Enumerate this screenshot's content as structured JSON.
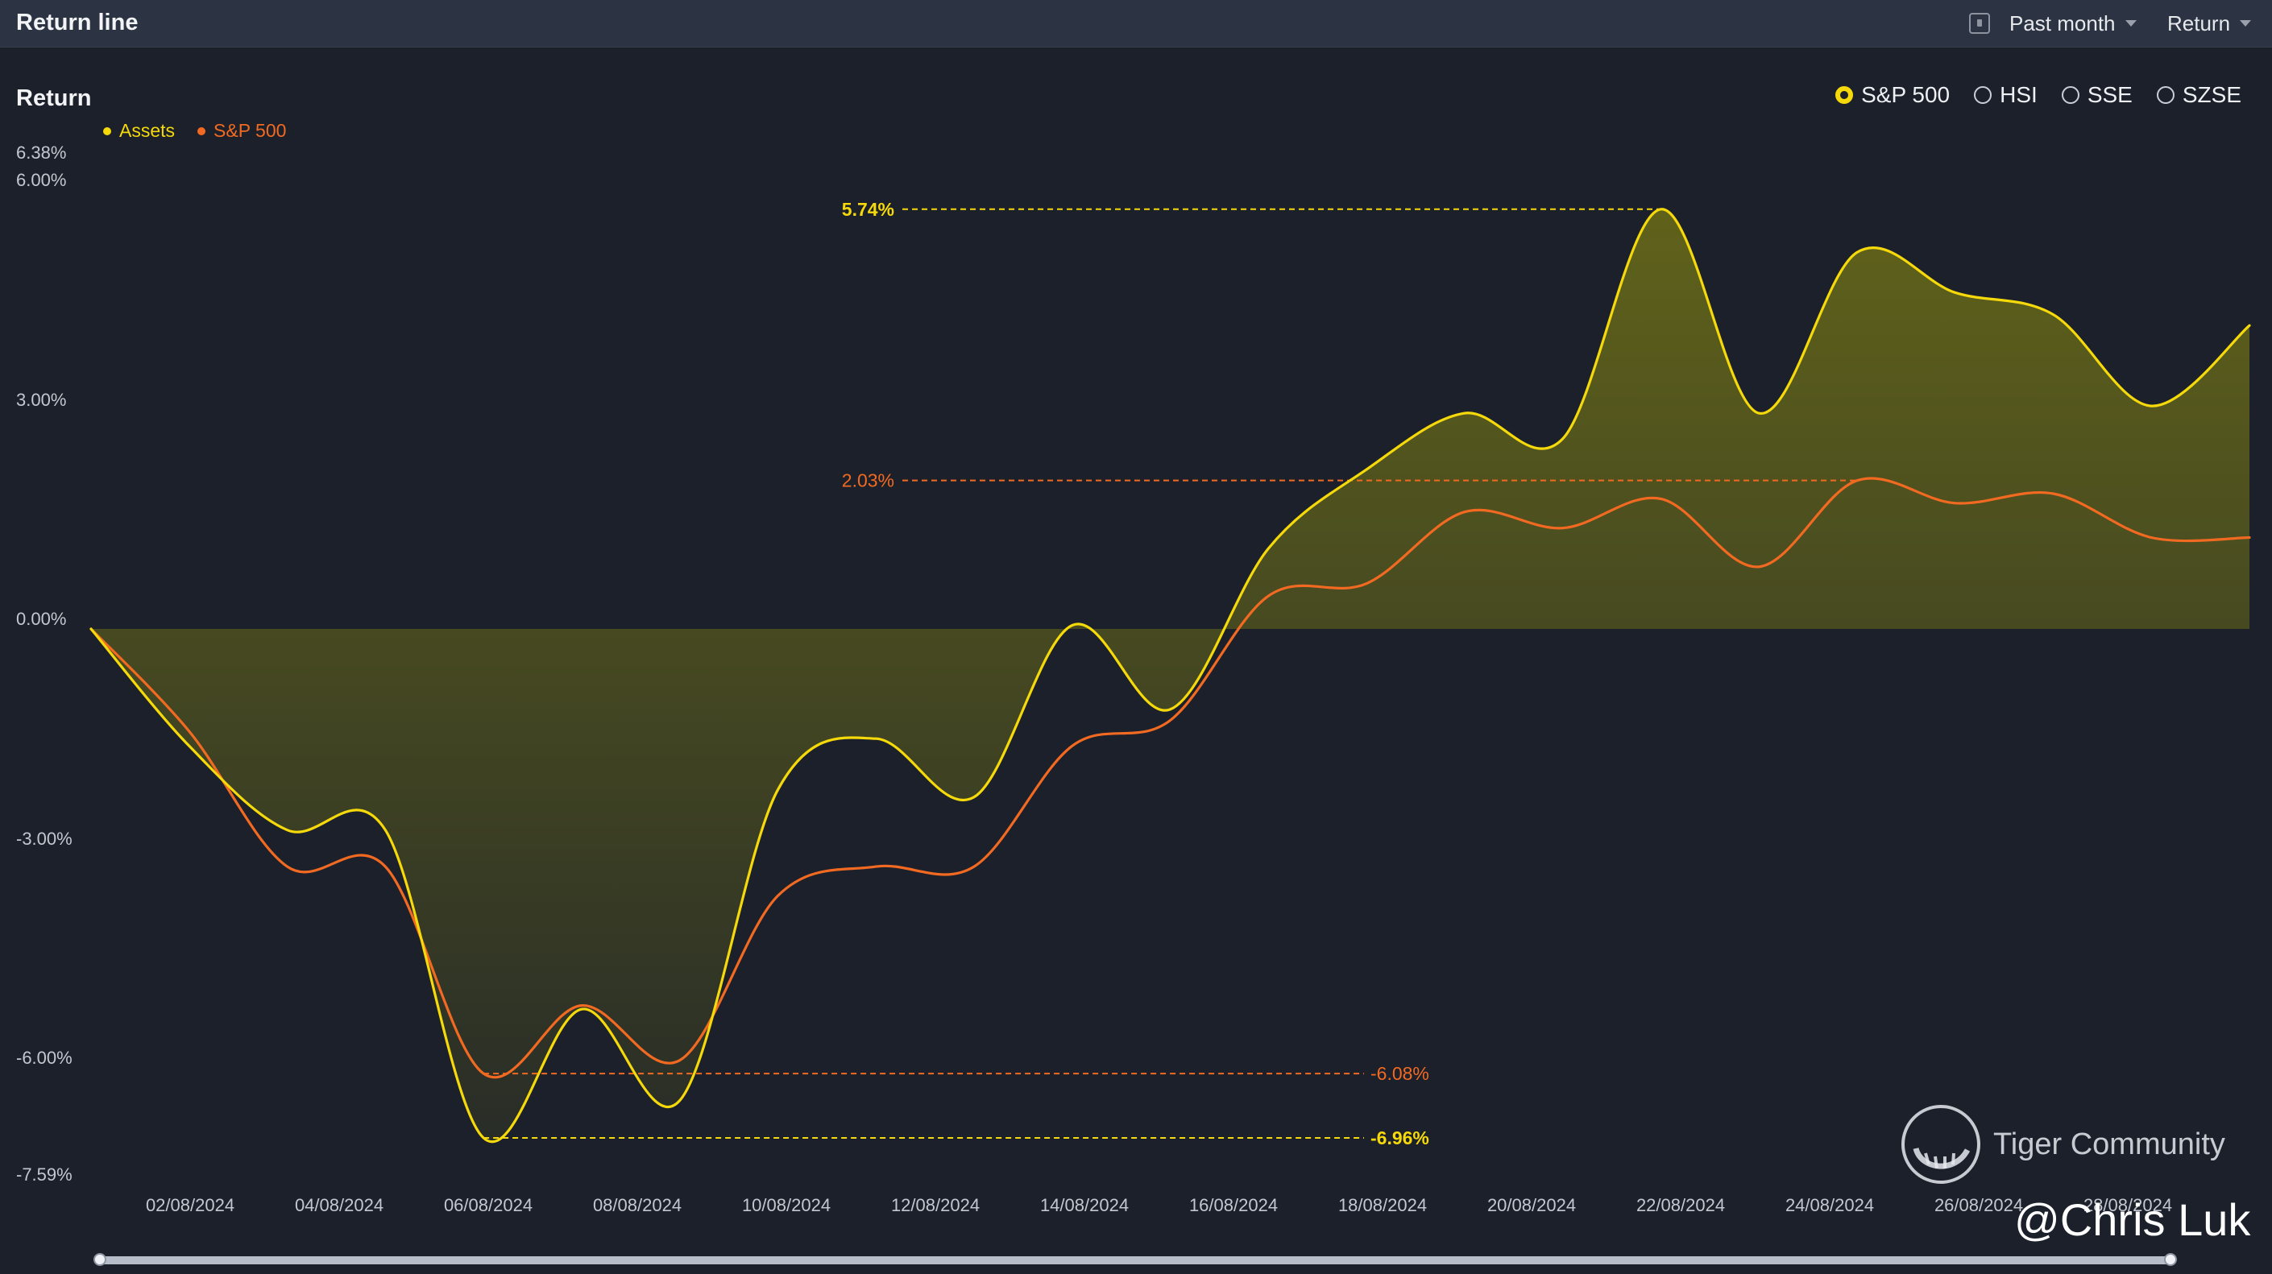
{
  "header": {
    "title": "Return line",
    "period_label": "Past month",
    "metric_label": "Return"
  },
  "section": {
    "title": "Return"
  },
  "legend": [
    {
      "label": "Assets",
      "color": "#f5d90a"
    },
    {
      "label": "S&P 500",
      "color": "#f26a21"
    }
  ],
  "benchmarks": [
    {
      "label": "S&P 500",
      "selected": true
    },
    {
      "label": "HSI",
      "selected": false
    },
    {
      "label": "SSE",
      "selected": false
    },
    {
      "label": "SZSE",
      "selected": false
    }
  ],
  "colors": {
    "assets": "#f5d90a",
    "sp500": "#f26a21",
    "background": "#1b202b",
    "header": "#2c3443"
  },
  "chart_data": {
    "type": "line",
    "ylabel": "Return",
    "ylim": [
      -7.59,
      6.38
    ],
    "y_ticks": [
      "6.38%",
      "6.00%",
      "3.00%",
      "0.00%",
      "-3.00%",
      "-6.00%",
      "-7.59%"
    ],
    "x_ticks": [
      "02/08/2024",
      "04/08/2024",
      "06/08/2024",
      "08/08/2024",
      "10/08/2024",
      "12/08/2024",
      "14/08/2024",
      "16/08/2024",
      "18/08/2024",
      "20/08/2024",
      "22/08/2024",
      "24/08/2024",
      "26/08/2024",
      "28/08/2024"
    ],
    "x": [
      "31/07/2024",
      "01/08/2024",
      "02/08/2024",
      "05/08/2024",
      "06/08/2024",
      "07/08/2024",
      "08/08/2024",
      "09/08/2024",
      "12/08/2024",
      "13/08/2024",
      "14/08/2024",
      "15/08/2024",
      "16/08/2024",
      "19/08/2024",
      "20/08/2024",
      "21/08/2024",
      "22/08/2024",
      "23/08/2024",
      "26/08/2024",
      "27/08/2024",
      "28/08/2024",
      "29/08/2024",
      "30/08/2024"
    ],
    "series": [
      {
        "name": "Assets",
        "color": "#f5d90a",
        "values": [
          0.0,
          -1.6,
          -2.75,
          -2.75,
          -6.96,
          -5.2,
          -6.45,
          -2.2,
          -1.5,
          -2.3,
          0.05,
          -1.1,
          1.1,
          2.18,
          2.95,
          2.6,
          5.74,
          2.95,
          5.15,
          4.6,
          4.3,
          3.05,
          4.15
        ]
      },
      {
        "name": "S&P 500",
        "color": "#f26a21",
        "values": [
          0.0,
          -1.4,
          -3.25,
          -3.25,
          -6.08,
          -5.15,
          -5.9,
          -3.65,
          -3.25,
          -3.25,
          -1.6,
          -1.25,
          0.45,
          0.62,
          1.6,
          1.38,
          1.78,
          0.85,
          2.03,
          1.72,
          1.85,
          1.25,
          1.25
        ]
      }
    ],
    "markers": [
      {
        "label": "5.74%",
        "value": 5.74,
        "series": "Assets",
        "kind": "max"
      },
      {
        "label": "2.03%",
        "value": 2.03,
        "series": "S&P 500",
        "kind": "max"
      },
      {
        "label": "-6.08%",
        "value": -6.08,
        "series": "S&P 500",
        "kind": "min"
      },
      {
        "label": "-6.96%",
        "value": -6.96,
        "series": "Assets",
        "kind": "min"
      }
    ],
    "grid": false,
    "legend_position": "top-left"
  },
  "watermark": {
    "brand": "Tiger Community",
    "credit": "@Chris Luk"
  }
}
